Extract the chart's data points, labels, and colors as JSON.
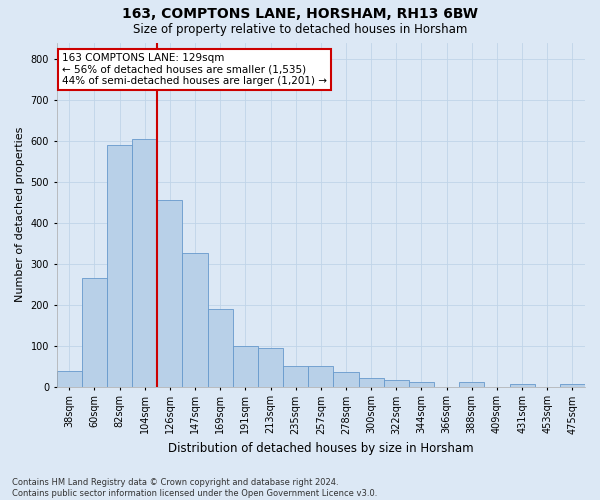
{
  "title": "163, COMPTONS LANE, HORSHAM, RH13 6BW",
  "subtitle": "Size of property relative to detached houses in Horsham",
  "xlabel": "Distribution of detached houses by size in Horsham",
  "ylabel": "Number of detached properties",
  "footer_line1": "Contains HM Land Registry data © Crown copyright and database right 2024.",
  "footer_line2": "Contains public sector information licensed under the Open Government Licence v3.0.",
  "bar_labels": [
    "38sqm",
    "60sqm",
    "82sqm",
    "104sqm",
    "126sqm",
    "147sqm",
    "169sqm",
    "191sqm",
    "213sqm",
    "235sqm",
    "257sqm",
    "278sqm",
    "300sqm",
    "322sqm",
    "344sqm",
    "366sqm",
    "388sqm",
    "409sqm",
    "431sqm",
    "453sqm",
    "475sqm"
  ],
  "bar_values": [
    38,
    265,
    590,
    605,
    455,
    325,
    190,
    100,
    95,
    50,
    50,
    35,
    20,
    15,
    10,
    0,
    10,
    0,
    5,
    0,
    5
  ],
  "bar_color": "#b8d0e8",
  "bar_edge_color": "#6699cc",
  "grid_color": "#c0d4e8",
  "background_color": "#dce8f5",
  "vline_color": "#cc0000",
  "vline_x": 3.5,
  "annotation_text": "163 COMPTONS LANE: 129sqm\n← 56% of detached houses are smaller (1,535)\n44% of semi-detached houses are larger (1,201) →",
  "annotation_box_color": "#ffffff",
  "annotation_box_edge": "#cc0000",
  "ylim": [
    0,
    840
  ],
  "yticks": [
    0,
    100,
    200,
    300,
    400,
    500,
    600,
    700,
    800
  ]
}
